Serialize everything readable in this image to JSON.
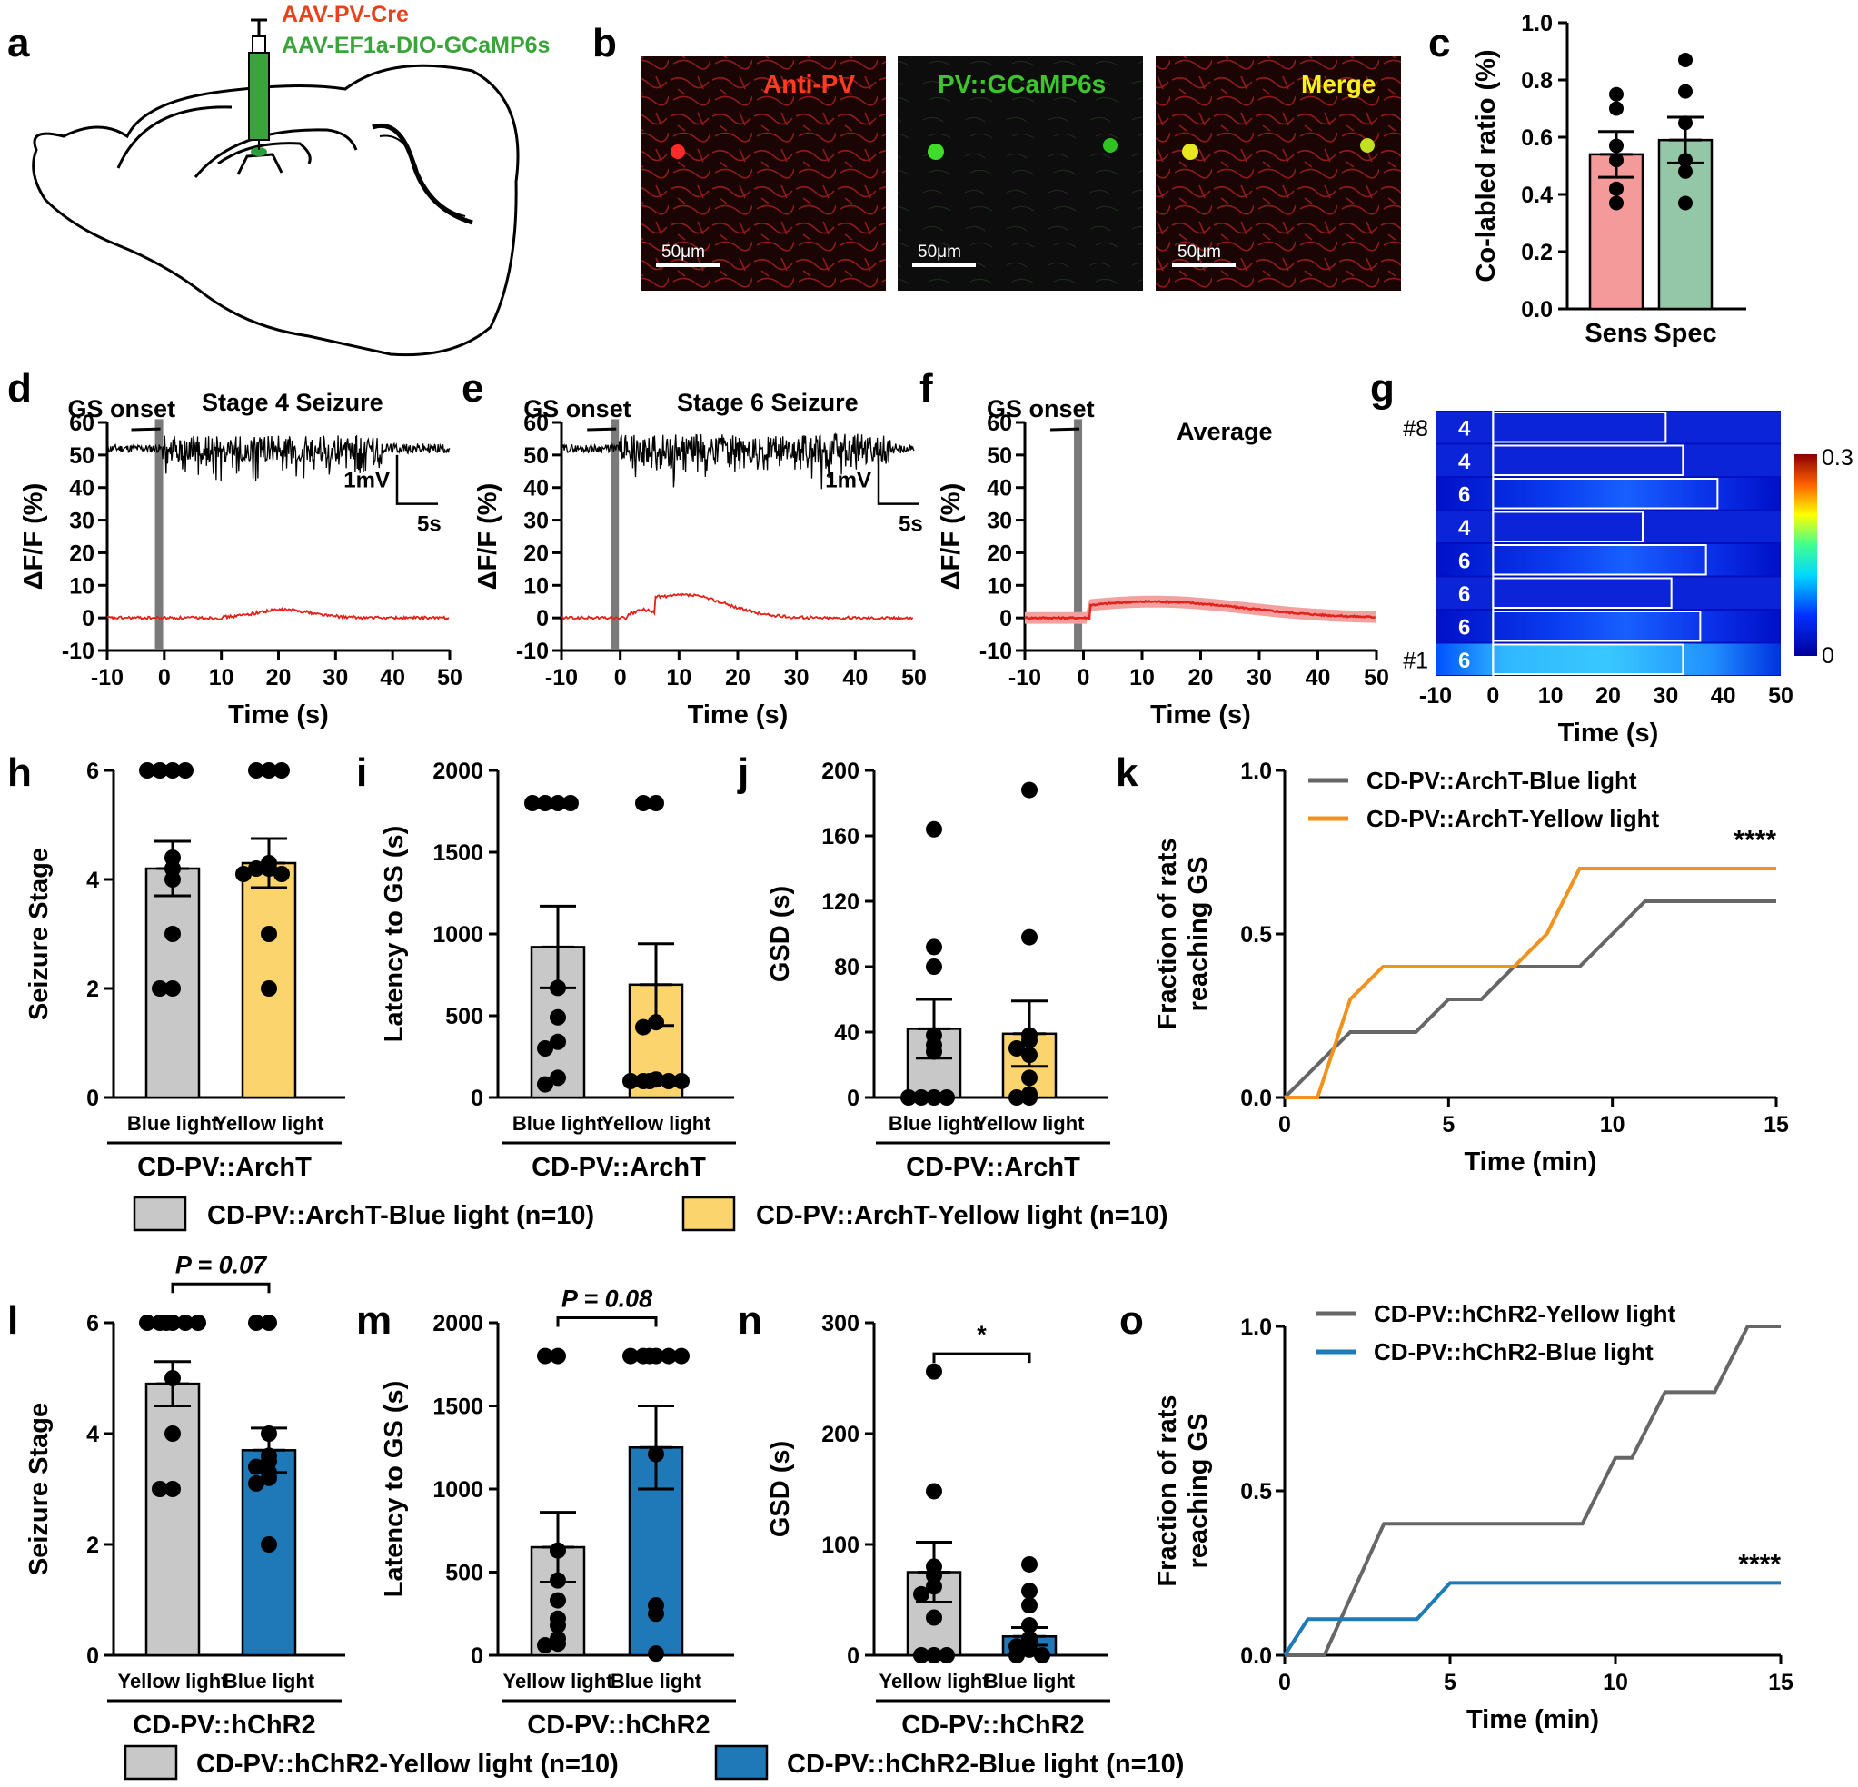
{
  "figure": {
    "panel_letters": [
      "a",
      "b",
      "c",
      "d",
      "e",
      "f",
      "g",
      "h",
      "i",
      "j",
      "k",
      "l",
      "m",
      "n",
      "o"
    ],
    "panel_a": {
      "virus_red": "AAV-PV-Cre",
      "virus_green": "AAV-EF1a-DIO-GCaMP6s"
    },
    "panel_b": {
      "labels": [
        "Anti-PV",
        "PV::GCaMP6s",
        "Merge"
      ],
      "scalebar": "50μm"
    },
    "fp": {
      "gs_onset": "GS onset",
      "ylabel": "ΔF/F (%)",
      "xlabel": "Time (s)",
      "scale_mv": "1mV",
      "scale_s": "5s",
      "d_title": "Stage 4 Seizure",
      "e_title": "Stage 6 Seizure",
      "f_title": "Average"
    },
    "panel_g": {
      "rank_top": "#8",
      "rank_bottom": "#1",
      "stages": [
        "4",
        "4",
        "6",
        "4",
        "6",
        "6",
        "6",
        "6"
      ],
      "cbar_max": "0.3",
      "cbar_min": "0",
      "durations": [
        30,
        33,
        39,
        26,
        37,
        31,
        36,
        33
      ],
      "xlabel": "Time (s)"
    },
    "legend_arch": {
      "blue": "CD-PV::ArchT-Blue light (n=10)",
      "yellow": "CD-PV::ArchT-Yellow light (n=10)"
    },
    "legend_chr2": {
      "yellow": "CD-PV::hChR2-Yellow light (n=10)",
      "blue": "CD-PV::hChR2-Blue light (n=10)"
    },
    "colors": {
      "grey_bar": "#c8c8c8",
      "yellow_bar": "#fcd46e",
      "blue_bar": "#1f78b8",
      "line_grey": "#666666",
      "line_orange": "#f0921d",
      "line_blue": "#1f7ab8",
      "red_trace": "#e2231a",
      "sens_bar": "#f59a9a",
      "spec_bar": "#93c7a8"
    },
    "group_arch": "CD-PV::ArchT",
    "group_chr2": "CD-PV::hChR2",
    "pvals": {
      "l": "P = 0.07",
      "m": "P = 0.08",
      "n": "*",
      "k": "****",
      "o": "****"
    }
  },
  "chart_data": [
    {
      "panel": "c",
      "type": "bar",
      "categories": [
        "Sens",
        "Spec"
      ],
      "values": [
        0.54,
        0.59
      ],
      "sem": [
        0.08,
        0.08
      ],
      "points": [
        [
          0.75,
          0.7,
          0.57,
          0.52,
          0.42,
          0.37
        ],
        [
          0.87,
          0.76,
          0.65,
          0.52,
          0.48,
          0.37
        ]
      ],
      "ylabel": "Co-labled ratio (%)",
      "ylim": [
        0,
        1.0
      ],
      "yticks": [
        "0.0",
        "0.2",
        "0.4",
        "0.6",
        "0.8",
        "1.0"
      ]
    },
    {
      "panel": "d",
      "type": "line",
      "title": "Stage 4 Seizure",
      "xlim": [
        -10,
        50
      ],
      "ylim": [
        -10,
        60
      ],
      "xticks": [
        "-10",
        "0",
        "10",
        "20",
        "30",
        "40",
        "50"
      ],
      "yticks": [
        "-10",
        "0",
        "10",
        "20",
        "30",
        "40",
        "50",
        "60"
      ],
      "fluorescence_peak": 2.5,
      "peak_time": 21
    },
    {
      "panel": "e",
      "type": "line",
      "title": "Stage 6 Seizure",
      "xlim": [
        -10,
        50
      ],
      "ylim": [
        -10,
        60
      ],
      "xticks": [
        "-10",
        "0",
        "10",
        "20",
        "30",
        "40",
        "50"
      ],
      "yticks": [
        "-10",
        "0",
        "10",
        "20",
        "30",
        "40",
        "50",
        "60"
      ],
      "fluorescence_peak": 7,
      "peak_time": 11
    },
    {
      "panel": "f",
      "type": "area",
      "title": "Average",
      "xlim": [
        -10,
        50
      ],
      "ylim": [
        -10,
        60
      ],
      "xticks": [
        "-10",
        "0",
        "10",
        "20",
        "30",
        "40",
        "50"
      ],
      "yticks": [
        "-10",
        "0",
        "10",
        "20",
        "30",
        "40",
        "50",
        "60"
      ],
      "fluorescence_peak": 5,
      "peak_time": 12
    },
    {
      "panel": "g",
      "type": "heatmap",
      "xlim": [
        -10,
        50
      ],
      "xticks": [
        "-10",
        "0",
        "10",
        "20",
        "30",
        "40",
        "50"
      ],
      "colorbar": [
        0,
        0.3
      ]
    },
    {
      "panel": "h",
      "type": "bar",
      "categories": [
        "Blue light",
        "Yellow light"
      ],
      "values": [
        4.2,
        4.3
      ],
      "sem": [
        0.5,
        0.45
      ],
      "points": [
        [
          6,
          6,
          6,
          6,
          4.4,
          4.2,
          4,
          3,
          2,
          2
        ],
        [
          6,
          6,
          6,
          4.3,
          4.2,
          4.2,
          4.1,
          4.1,
          3,
          2
        ]
      ],
      "ylabel": "Seizure Stage",
      "ylim": [
        0,
        6
      ],
      "yticks": [
        "0",
        "2",
        "4",
        "6"
      ]
    },
    {
      "panel": "i",
      "type": "bar",
      "categories": [
        "Blue light",
        "Yellow light"
      ],
      "values": [
        920,
        690
      ],
      "sem": [
        250,
        250
      ],
      "points": [
        [
          1800,
          1800,
          1800,
          1800,
          670,
          490,
          340,
          300,
          120,
          80
        ],
        [
          1800,
          1800,
          460,
          430,
          110,
          100,
          100,
          100,
          100,
          100
        ]
      ],
      "ylabel": "Latency to GS (s)",
      "ylim": [
        0,
        2000
      ],
      "yticks": [
        "0",
        "500",
        "1000",
        "1500",
        "2000"
      ]
    },
    {
      "panel": "j",
      "type": "bar",
      "categories": [
        "Blue light",
        "Yellow light"
      ],
      "values": [
        42,
        39
      ],
      "sem": [
        18,
        20
      ],
      "points": [
        [
          164,
          92,
          80,
          38,
          32,
          28,
          0,
          0,
          0,
          0
        ],
        [
          188,
          98,
          38,
          35,
          30,
          26,
          12,
          2,
          0,
          0
        ]
      ],
      "ylabel": "GSD (s)",
      "ylim": [
        0,
        200
      ],
      "yticks": [
        "0",
        "40",
        "80",
        "120",
        "160",
        "200"
      ]
    },
    {
      "panel": "k",
      "type": "line",
      "xlabel": "Time (min)",
      "ylabel": "Fraction of rats reaching GS",
      "xlim": [
        0,
        15
      ],
      "ylim": [
        0,
        1.0
      ],
      "xticks": [
        "0",
        "5",
        "10",
        "15"
      ],
      "yticks": [
        "0.0",
        "0.5",
        "1.0"
      ],
      "series": [
        {
          "name": "CD-PV::ArchT-Blue light",
          "x": [
            0,
            2,
            4,
            5,
            6,
            7,
            9,
            11,
            15
          ],
          "y": [
            0,
            0.2,
            0.2,
            0.3,
            0.3,
            0.4,
            0.4,
            0.6,
            0.6
          ]
        },
        {
          "name": "CD-PV::ArchT-Yellow light",
          "x": [
            0,
            1,
            2,
            3,
            7,
            8,
            9,
            15
          ],
          "y": [
            0,
            0,
            0.3,
            0.4,
            0.4,
            0.5,
            0.7,
            0.7
          ]
        }
      ]
    },
    {
      "panel": "l",
      "type": "bar",
      "categories": [
        "Yellow light",
        "Blue light"
      ],
      "values": [
        4.9,
        3.7
      ],
      "sem": [
        0.4,
        0.4
      ],
      "points": [
        [
          6,
          6,
          6,
          6,
          6,
          6,
          5,
          4,
          3,
          3
        ],
        [
          6,
          6,
          4,
          3.6,
          3.5,
          3.4,
          3.3,
          3.2,
          3.1,
          2
        ]
      ],
      "ylabel": "Seizure Stage",
      "ylim": [
        0,
        6
      ],
      "yticks": [
        "0",
        "2",
        "4",
        "6"
      ]
    },
    {
      "panel": "m",
      "type": "bar",
      "categories": [
        "Yellow light",
        "Blue light"
      ],
      "values": [
        650,
        1250
      ],
      "sem": [
        210,
        250
      ],
      "points": [
        [
          1800,
          1800,
          630,
          450,
          330,
          220,
          180,
          100,
          70,
          60
        ],
        [
          1800,
          1800,
          1800,
          1800,
          1800,
          1800,
          1210,
          300,
          250,
          10
        ]
      ],
      "ylabel": "Latency to GS (s)",
      "ylim": [
        0,
        2000
      ],
      "yticks": [
        "0",
        "500",
        "1000",
        "1500",
        "2000"
      ]
    },
    {
      "panel": "n",
      "type": "bar",
      "categories": [
        "Yellow light",
        "Blue light"
      ],
      "values": [
        75,
        17
      ],
      "sem": [
        27,
        8
      ],
      "points": [
        [
          256,
          148,
          80,
          72,
          62,
          55,
          34,
          0,
          0,
          0
        ],
        [
          82,
          58,
          45,
          27,
          15,
          12,
          8,
          5,
          0,
          0
        ]
      ],
      "ylabel": "GSD (s)",
      "ylim": [
        0,
        300
      ],
      "yticks": [
        "0",
        "100",
        "200",
        "300"
      ]
    },
    {
      "panel": "o",
      "type": "line",
      "xlabel": "Time (min)",
      "ylabel": "Fraction of rats reaching GS",
      "xlim": [
        0,
        15
      ],
      "ylim": [
        0,
        1.0
      ],
      "xticks": [
        "0",
        "5",
        "10",
        "15"
      ],
      "yticks": [
        "0.0",
        "0.5",
        "1.0"
      ],
      "series": [
        {
          "name": "CD-PV::hChR2-Yellow light",
          "x": [
            0,
            1.2,
            3,
            9,
            10,
            10.5,
            11.5,
            12.3,
            13,
            14,
            15
          ],
          "y": [
            0,
            0,
            0.4,
            0.4,
            0.6,
            0.6,
            0.8,
            0.8,
            0.8,
            1.0,
            1.0
          ]
        },
        {
          "name": "CD-PV::hChR2-Blue light",
          "x": [
            0,
            0.7,
            1.4,
            4,
            5,
            15
          ],
          "y": [
            0,
            0.11,
            0.11,
            0.11,
            0.22,
            0.22
          ]
        }
      ]
    }
  ]
}
